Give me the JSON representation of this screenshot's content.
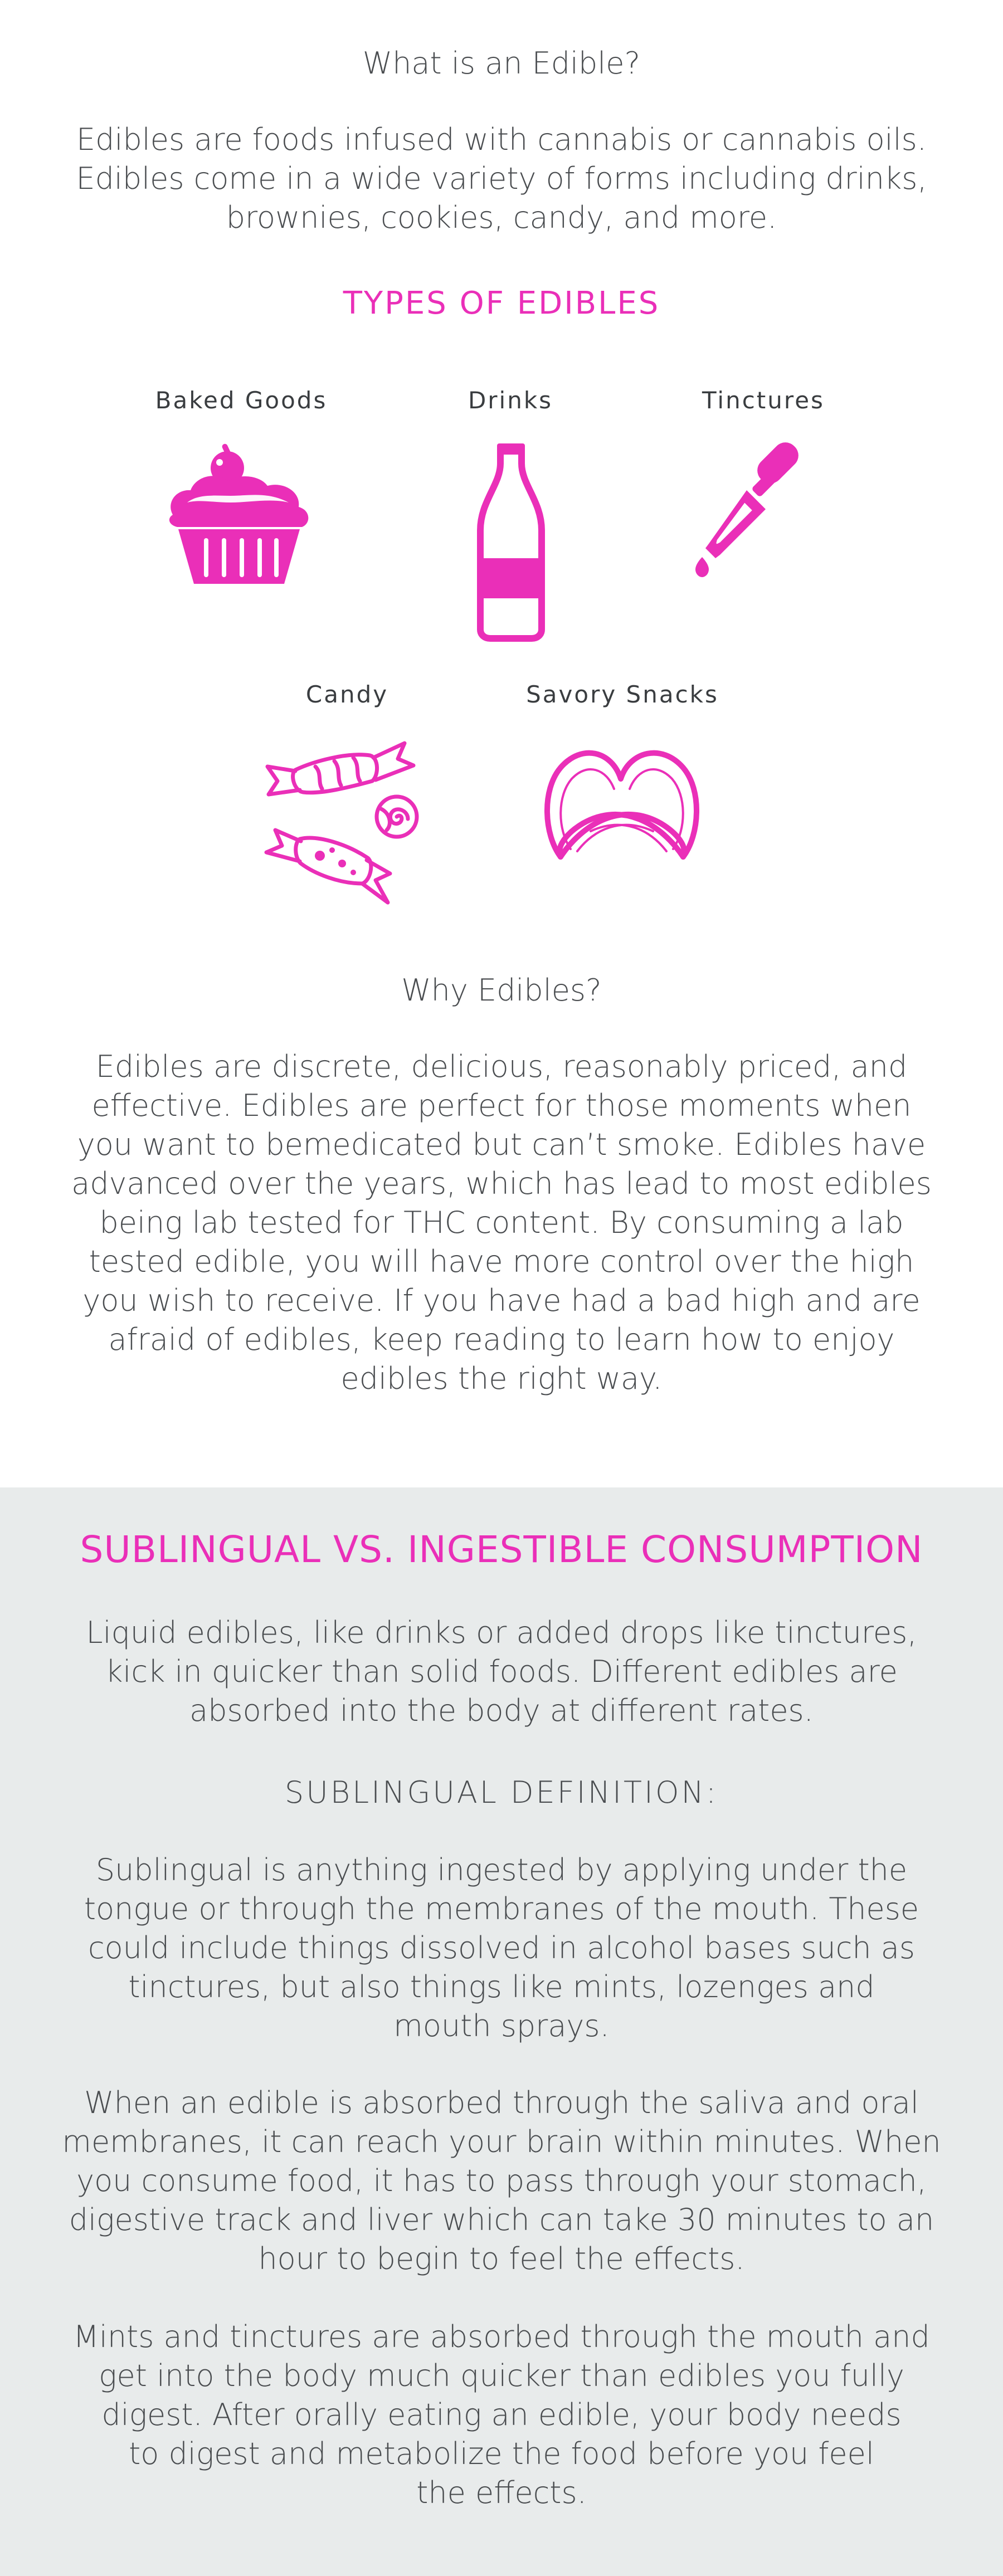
{
  "intro": {
    "title": "What is an Edible?",
    "lines": [
      "Edibles are foods infused with cannabis or cannabis oils.",
      "Edibles come in a wide variety of forms including drinks,",
      "brownies, cookies, candy, and more."
    ]
  },
  "types": {
    "heading": "TYPES OF EDIBLES",
    "items": [
      {
        "label": "Baked Goods",
        "icon": "cupcake-icon"
      },
      {
        "label": "Drinks",
        "icon": "bottle-icon"
      },
      {
        "label": "Tinctures",
        "icon": "dropper-icon"
      },
      {
        "label": "Candy",
        "icon": "candy-icon"
      },
      {
        "label": "Savory Snacks",
        "icon": "pretzel-icon"
      }
    ]
  },
  "why": {
    "title": "Why Edibles?",
    "lines": [
      "Edibles are discrete, delicious, reasonably priced, and",
      "effective. Edibles are perfect for those moments when",
      "you want to bemedicated but can’t smoke. Edibles have",
      "advanced over the years, which has lead to most edibles",
      "being lab tested for THC content. By consuming a lab",
      "tested edible, you will have more control over the high",
      "you wish to receive. If you have had a bad high and are",
      "afraid of edibles, keep reading to learn how to enjoy",
      "edibles the right way."
    ]
  },
  "sublingual": {
    "heading": "SUBLINGUAL VS. INGESTIBLE CONSUMPTION",
    "intro_lines": [
      "Liquid edibles, like drinks or added drops like tinctures,",
      "kick in quicker than solid foods. Different edibles are",
      "absorbed into the body at different rates."
    ],
    "definition_title": "SUBLINGUAL DEFINITION:",
    "definition_lines": [
      "Sublingual is anything ingested by applying under the",
      "tongue or through the membranes of the mouth. These",
      "could include things dissolved in alcohol bases such as",
      "tinctures, but also things like mints, lozenges and",
      "mouth sprays."
    ],
    "absorb_lines": [
      "When an edible is absorbed through the saliva and oral",
      "membranes, it can reach your brain within minutes. When",
      "you consume food, it has to pass through your stomach,",
      "digestive track and liver which can take 30 minutes to an",
      "hour to begin to feel the effects."
    ],
    "mints_lines": [
      "Mints and tinctures are absorbed through the mouth and",
      "get into the body much quicker than edibles you fully",
      "digest. After orally eating an edible, your body needs",
      "to digest and metabolize the food before you feel",
      "the effects."
    ]
  },
  "colors": {
    "accent": "#ea2fb8",
    "text": "#4a4d50",
    "panel": "#e8ebeb"
  }
}
